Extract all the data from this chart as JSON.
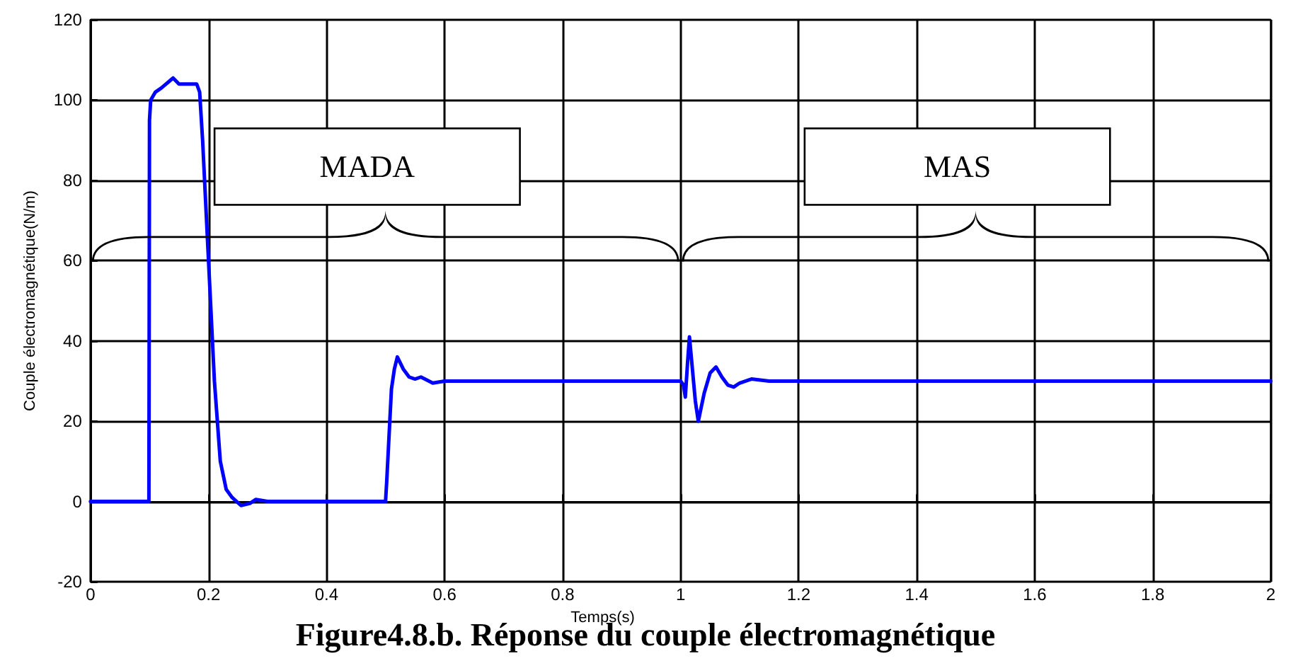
{
  "chart_data": {
    "type": "line",
    "title": "Figure4.8.b. Réponse du couple électromagnétique",
    "xlabel": "Temps(s)",
    "ylabel": "Couple électromagnétique(N/m)",
    "series": [
      {
        "color": "#0000ff",
        "x": [
          0,
          0.099,
          0.1,
          0.102,
          0.11,
          0.12,
          0.14,
          0.15,
          0.17,
          0.18,
          0.185,
          0.19,
          0.2,
          0.21,
          0.22,
          0.23,
          0.24,
          0.255,
          0.27,
          0.28,
          0.3,
          0.5,
          0.502,
          0.51,
          0.515,
          0.52,
          0.53,
          0.54,
          0.55,
          0.56,
          0.58,
          0.6,
          1.0,
          1.005,
          1.008,
          1.012,
          1.015,
          1.02,
          1.025,
          1.03,
          1.04,
          1.05,
          1.06,
          1.07,
          1.08,
          1.09,
          1.1,
          1.12,
          1.15,
          2.0
        ],
        "values": [
          0,
          0,
          95,
          100,
          102,
          103,
          105.5,
          104,
          104,
          104,
          102,
          90,
          60,
          30,
          10,
          3,
          1,
          -1,
          -0.5,
          0.5,
          0,
          0,
          5,
          28,
          33,
          36,
          33,
          31,
          30.5,
          31,
          29.5,
          30,
          30,
          29,
          26,
          35,
          41,
          33,
          25,
          20,
          27,
          32,
          33.5,
          31,
          29,
          28.5,
          29.5,
          30.5,
          30,
          30
        ]
      }
    ],
    "annotations": [
      "MADA",
      "MAS"
    ],
    "xlim": [
      0,
      2
    ],
    "xticks": [
      0,
      0.2,
      0.4,
      0.6,
      0.8,
      1,
      1.2,
      1.4,
      1.6,
      1.8,
      2
    ],
    "ylim": [
      -20,
      120
    ],
    "yticks": [
      -20,
      0,
      20,
      40,
      60,
      80,
      100,
      120
    ],
    "grid": true,
    "marker": "none",
    "line_style": "solid"
  }
}
